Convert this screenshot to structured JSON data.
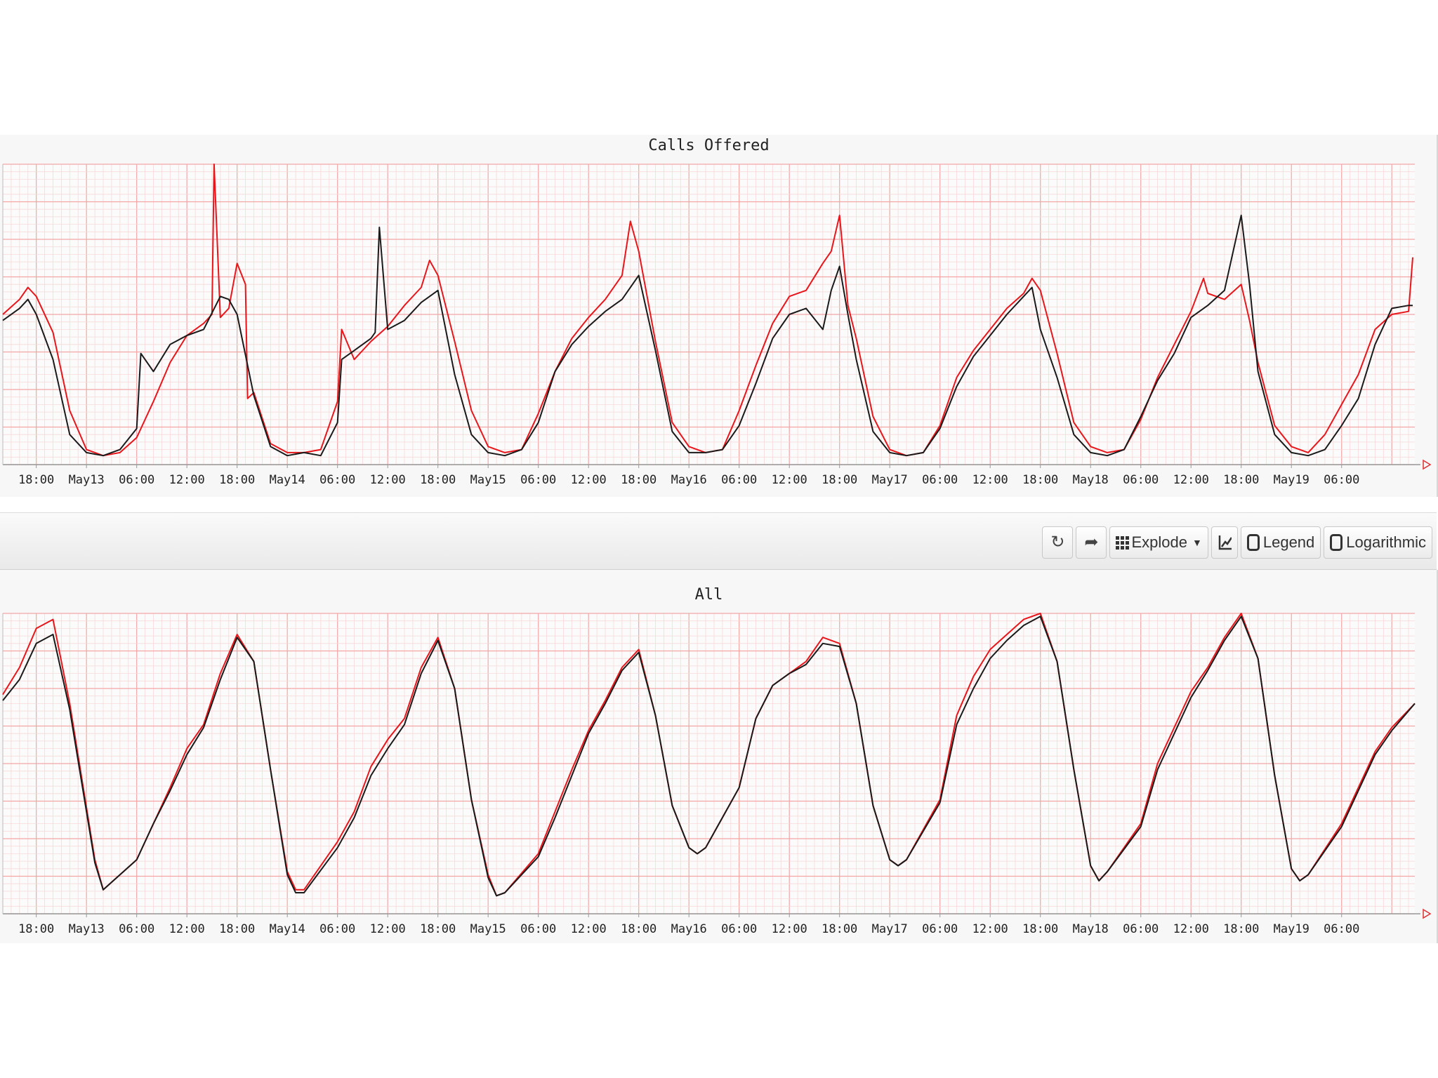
{
  "toolbar": {
    "refresh_icon": "refresh-icon",
    "share_icon": "share-arrow-icon",
    "explode_label": "Explode",
    "explode_icon": "grid-icon",
    "chart_icon": "line-chart-icon",
    "legend_label": "Legend",
    "legend_checked": false,
    "log_label": "Logarithmic",
    "log_checked": false
  },
  "colors": {
    "series_a": "#e8161b",
    "series_b": "#1a1a1a",
    "grid_major": "#f4a6a6",
    "grid_minor": "#f7d9d9",
    "panel_bg": "#f7f7f7"
  },
  "chart_data": [
    {
      "type": "line",
      "title": "Calls Offered",
      "x_tick_labels": [
        "18:00",
        "May13",
        "06:00",
        "12:00",
        "18:00",
        "May14",
        "06:00",
        "12:00",
        "18:00",
        "May15",
        "06:00",
        "12:00",
        "18:00",
        "May16",
        "06:00",
        "12:00",
        "18:00",
        "May17",
        "06:00",
        "12:00",
        "18:00",
        "May18",
        "06:00",
        "12:00",
        "18:00",
        "May19",
        "06:00"
      ],
      "x_range": [
        "2019-05-12 14:00",
        "2019-05-19 14:45"
      ],
      "y_range": [
        0,
        100
      ],
      "y_labels_visible": false,
      "grid": true,
      "legend": "hidden",
      "series": [
        {
          "color": "#e8161b",
          "x": [
            "05-12 14:00",
            "05-12 16:00",
            "05-12 17:00",
            "05-12 18:00",
            "05-12 20:00",
            "05-12 22:00",
            "05-13 00:00",
            "05-13 02:00",
            "05-13 04:00",
            "05-13 06:00",
            "05-13 08:00",
            "05-13 10:00",
            "05-13 12:00",
            "05-13 14:00",
            "05-13 15:00",
            "05-13 15:15",
            "05-13 16:00",
            "05-13 17:00",
            "05-13 18:00",
            "05-13 19:00",
            "05-13 19:15",
            "05-13 20:00",
            "05-13 22:00",
            "05-14 00:00",
            "05-14 02:00",
            "05-14 04:00",
            "05-14 06:00",
            "05-14 06:30",
            "05-14 08:00",
            "05-14 10:00",
            "05-14 12:00",
            "05-14 14:00",
            "05-14 16:00",
            "05-14 17:00",
            "05-14 18:00",
            "05-14 20:00",
            "05-14 22:00",
            "05-15 00:00",
            "05-15 02:00",
            "05-15 04:00",
            "05-15 06:00",
            "05-15 08:00",
            "05-15 10:00",
            "05-15 12:00",
            "05-15 14:00",
            "05-15 16:00",
            "05-15 17:00",
            "05-15 18:00",
            "05-15 20:00",
            "05-15 22:00",
            "05-16 00:00",
            "05-16 02:00",
            "05-16 04:00",
            "05-16 06:00",
            "05-16 08:00",
            "05-16 10:00",
            "05-16 12:00",
            "05-16 14:00",
            "05-16 16:00",
            "05-16 17:00",
            "05-16 18:00",
            "05-16 19:00",
            "05-16 20:00",
            "05-16 22:00",
            "05-17 00:00",
            "05-17 02:00",
            "05-17 04:00",
            "05-17 06:00",
            "05-17 08:00",
            "05-17 10:00",
            "05-17 12:00",
            "05-17 14:00",
            "05-17 16:00",
            "05-17 17:00",
            "05-17 18:00",
            "05-17 20:00",
            "05-17 22:00",
            "05-18 00:00",
            "05-18 02:00",
            "05-18 04:00",
            "05-18 06:00",
            "05-18 08:00",
            "05-18 10:00",
            "05-18 12:00",
            "05-18 13:30",
            "05-18 14:00",
            "05-18 16:00",
            "05-18 18:00",
            "05-18 19:00",
            "05-18 20:00",
            "05-18 22:00",
            "05-19 00:00",
            "05-19 02:00",
            "05-19 04:00",
            "05-19 06:00",
            "05-19 08:00",
            "05-19 10:00",
            "05-19 12:00",
            "05-19 14:00",
            "05-19 14:30"
          ],
          "y": [
            50,
            55,
            59,
            56,
            44,
            18,
            5,
            3,
            4,
            9,
            21,
            34,
            43,
            47,
            50,
            100,
            49,
            52,
            67,
            60,
            22,
            24,
            7,
            4,
            4,
            5,
            21,
            45,
            35,
            41,
            46,
            53,
            59,
            68,
            63,
            41,
            18,
            6,
            4,
            5,
            17,
            31,
            42,
            49,
            55,
            63,
            81,
            71,
            41,
            14,
            6,
            4,
            5,
            18,
            33,
            47,
            56,
            58,
            67,
            71,
            83,
            53,
            42,
            16,
            5,
            3,
            4,
            13,
            29,
            38,
            45,
            52,
            57,
            62,
            58,
            37,
            14,
            6,
            4,
            5,
            15,
            29,
            40,
            51,
            62,
            57,
            55,
            60,
            48,
            34,
            13,
            6,
            4,
            10,
            20,
            30,
            45,
            50,
            51,
            69
          ]
        },
        {
          "color": "#1a1a1a",
          "x": [
            "05-12 14:00",
            "05-12 16:00",
            "05-12 17:00",
            "05-12 18:00",
            "05-12 20:00",
            "05-12 22:00",
            "05-13 00:00",
            "05-13 02:00",
            "05-13 04:00",
            "05-13 06:00",
            "05-13 06:30",
            "05-13 08:00",
            "05-13 10:00",
            "05-13 12:00",
            "05-13 14:00",
            "05-13 16:00",
            "05-13 17:00",
            "05-13 18:00",
            "05-13 20:00",
            "05-13 22:00",
            "05-14 00:00",
            "05-14 02:00",
            "05-14 04:00",
            "05-14 06:00",
            "05-14 06:30",
            "05-14 08:00",
            "05-14 10:00",
            "05-14 10:30",
            "05-14 11:00",
            "05-14 12:00",
            "05-14 14:00",
            "05-14 16:00",
            "05-14 18:00",
            "05-14 20:00",
            "05-14 22:00",
            "05-15 00:00",
            "05-15 02:00",
            "05-15 04:00",
            "05-15 06:00",
            "05-15 08:00",
            "05-15 10:00",
            "05-15 12:00",
            "05-15 14:00",
            "05-15 16:00",
            "05-15 18:00",
            "05-15 20:00",
            "05-15 22:00",
            "05-16 00:00",
            "05-16 02:00",
            "05-16 04:00",
            "05-16 06:00",
            "05-16 08:00",
            "05-16 10:00",
            "05-16 12:00",
            "05-16 14:00",
            "05-16 16:00",
            "05-16 17:00",
            "05-16 18:00",
            "05-16 19:00",
            "05-16 20:00",
            "05-16 22:00",
            "05-17 00:00",
            "05-17 02:00",
            "05-17 04:00",
            "05-17 06:00",
            "05-17 08:00",
            "05-17 10:00",
            "05-17 12:00",
            "05-17 14:00",
            "05-17 16:00",
            "05-17 17:00",
            "05-17 18:00",
            "05-17 20:00",
            "05-17 22:00",
            "05-18 00:00",
            "05-18 02:00",
            "05-18 04:00",
            "05-18 06:00",
            "05-18 08:00",
            "05-18 10:00",
            "05-18 12:00",
            "05-18 14:00",
            "05-18 16:00",
            "05-18 18:00",
            "05-18 19:00",
            "05-18 20:00",
            "05-18 22:00",
            "05-19 00:00",
            "05-19 02:00",
            "05-19 04:00",
            "05-19 06:00",
            "05-19 08:00",
            "05-19 10:00",
            "05-19 12:00",
            "05-19 14:00",
            "05-19 14:30"
          ],
          "y": [
            48,
            52,
            55,
            50,
            35,
            10,
            4,
            3,
            5,
            12,
            37,
            31,
            40,
            43,
            45,
            56,
            55,
            50,
            23,
            6,
            3,
            4,
            3,
            14,
            35,
            38,
            42,
            44,
            79,
            45,
            48,
            54,
            58,
            30,
            10,
            4,
            3,
            5,
            14,
            31,
            40,
            46,
            51,
            55,
            63,
            38,
            11,
            4,
            4,
            5,
            13,
            27,
            42,
            50,
            52,
            45,
            58,
            66,
            50,
            35,
            11,
            4,
            3,
            4,
            12,
            26,
            36,
            43,
            50,
            56,
            59,
            45,
            29,
            10,
            4,
            3,
            5,
            16,
            28,
            37,
            49,
            53,
            58,
            83,
            60,
            31,
            10,
            4,
            3,
            5,
            13,
            22,
            40,
            52,
            53,
            53
          ]
        }
      ]
    },
    {
      "type": "line",
      "title": "All",
      "x_tick_labels": [
        "18:00",
        "May13",
        "06:00",
        "12:00",
        "18:00",
        "May14",
        "06:00",
        "12:00",
        "18:00",
        "May15",
        "06:00",
        "12:00",
        "18:00",
        "May16",
        "06:00",
        "12:00",
        "18:00",
        "May17",
        "06:00",
        "12:00",
        "18:00",
        "May18",
        "06:00",
        "12:00",
        "18:00",
        "May19",
        "06:00"
      ],
      "x_range": [
        "2019-05-12 14:00",
        "2019-05-19 14:45"
      ],
      "y_range": [
        0,
        100
      ],
      "y_labels_visible": false,
      "grid": true,
      "legend": "hidden",
      "series": [
        {
          "color": "#e8161b",
          "x": [
            "05-12 14:00",
            "05-12 16:00",
            "05-12 18:00",
            "05-12 20:00",
            "05-12 22:00",
            "05-13 01:00",
            "05-13 02:00",
            "05-13 06:00",
            "05-13 08:00",
            "05-13 10:00",
            "05-13 12:00",
            "05-13 14:00",
            "05-13 16:00",
            "05-13 18:00",
            "05-13 20:00",
            "05-13 22:00",
            "05-14 00:00",
            "05-14 01:00",
            "05-14 02:00",
            "05-14 06:00",
            "05-14 08:00",
            "05-14 10:00",
            "05-14 12:00",
            "05-14 14:00",
            "05-14 16:00",
            "05-14 18:00",
            "05-14 20:00",
            "05-14 22:00",
            "05-15 00:00",
            "05-15 01:00",
            "05-15 02:00",
            "05-15 06:00",
            "05-15 08:00",
            "05-15 10:00",
            "05-15 12:00",
            "05-15 14:00",
            "05-15 16:00",
            "05-15 18:00",
            "05-15 20:00",
            "05-15 22:00",
            "05-16 00:00",
            "05-16 01:00",
            "05-16 02:00",
            "05-16 06:00",
            "05-16 08:00",
            "05-16 10:00",
            "05-16 12:00",
            "05-16 14:00",
            "05-16 16:00",
            "05-16 18:00",
            "05-16 20:00",
            "05-16 22:00",
            "05-17 00:00",
            "05-17 01:00",
            "05-17 02:00",
            "05-17 06:00",
            "05-17 08:00",
            "05-17 10:00",
            "05-17 12:00",
            "05-17 14:00",
            "05-17 16:00",
            "05-17 18:00",
            "05-17 20:00",
            "05-17 22:00",
            "05-18 00:00",
            "05-18 01:00",
            "05-18 02:00",
            "05-18 06:00",
            "05-18 08:00",
            "05-18 10:00",
            "05-18 12:00",
            "05-18 14:00",
            "05-18 16:00",
            "05-18 18:00",
            "05-18 20:00",
            "05-18 22:00",
            "05-19 00:00",
            "05-19 01:00",
            "05-19 02:00",
            "05-19 06:00",
            "05-19 08:00",
            "05-19 10:00",
            "05-19 12:00",
            "05-19 14:45"
          ],
          "y": [
            73,
            82,
            95,
            98,
            70,
            18,
            8,
            18,
            30,
            42,
            55,
            63,
            80,
            93,
            84,
            48,
            14,
            8,
            8,
            24,
            34,
            49,
            58,
            65,
            82,
            92,
            75,
            38,
            13,
            6,
            7,
            20,
            34,
            48,
            61,
            71,
            82,
            88,
            66,
            36,
            22,
            20,
            22,
            42,
            65,
            76,
            80,
            84,
            92,
            90,
            70,
            36,
            18,
            16,
            18,
            38,
            66,
            79,
            88,
            93,
            98,
            100,
            84,
            48,
            16,
            11,
            14,
            30,
            50,
            62,
            74,
            82,
            92,
            100,
            85,
            46,
            15,
            11,
            13,
            30,
            42,
            54,
            62,
            70
          ]
        },
        {
          "color": "#1a1a1a",
          "x": [
            "05-12 14:00",
            "05-12 16:00",
            "05-12 18:00",
            "05-12 20:00",
            "05-12 22:00",
            "05-13 01:00",
            "05-13 02:00",
            "05-13 06:00",
            "05-13 08:00",
            "05-13 10:00",
            "05-13 12:00",
            "05-13 14:00",
            "05-13 16:00",
            "05-13 18:00",
            "05-13 20:00",
            "05-13 22:00",
            "05-14 00:00",
            "05-14 01:00",
            "05-14 02:00",
            "05-14 06:00",
            "05-14 08:00",
            "05-14 10:00",
            "05-14 12:00",
            "05-14 14:00",
            "05-14 16:00",
            "05-14 18:00",
            "05-14 20:00",
            "05-14 22:00",
            "05-15 00:00",
            "05-15 01:00",
            "05-15 02:00",
            "05-15 06:00",
            "05-15 08:00",
            "05-15 10:00",
            "05-15 12:00",
            "05-15 14:00",
            "05-15 16:00",
            "05-15 18:00",
            "05-15 20:00",
            "05-15 22:00",
            "05-16 00:00",
            "05-16 01:00",
            "05-16 02:00",
            "05-16 06:00",
            "05-16 08:00",
            "05-16 10:00",
            "05-16 12:00",
            "05-16 14:00",
            "05-16 16:00",
            "05-16 18:00",
            "05-16 20:00",
            "05-16 22:00",
            "05-17 00:00",
            "05-17 01:00",
            "05-17 02:00",
            "05-17 06:00",
            "05-17 08:00",
            "05-17 10:00",
            "05-17 12:00",
            "05-17 14:00",
            "05-17 16:00",
            "05-17 18:00",
            "05-17 20:00",
            "05-17 22:00",
            "05-18 00:00",
            "05-18 01:00",
            "05-18 02:00",
            "05-18 06:00",
            "05-18 08:00",
            "05-18 10:00",
            "05-18 12:00",
            "05-18 14:00",
            "05-18 16:00",
            "05-18 18:00",
            "05-18 20:00",
            "05-18 22:00",
            "05-19 00:00",
            "05-19 01:00",
            "05-19 02:00",
            "05-19 06:00",
            "05-19 08:00",
            "05-19 10:00",
            "05-19 12:00",
            "05-19 14:45"
          ],
          "y": [
            71,
            78,
            90,
            93,
            68,
            17,
            8,
            18,
            30,
            41,
            53,
            62,
            78,
            92,
            84,
            48,
            13,
            7,
            7,
            22,
            32,
            46,
            55,
            63,
            80,
            91,
            75,
            38,
            12,
            6,
            7,
            19,
            32,
            46,
            60,
            70,
            81,
            87,
            66,
            36,
            22,
            20,
            22,
            42,
            65,
            76,
            80,
            83,
            90,
            89,
            70,
            36,
            18,
            16,
            18,
            37,
            63,
            75,
            85,
            91,
            96,
            99,
            84,
            48,
            16,
            11,
            14,
            29,
            48,
            60,
            72,
            81,
            91,
            99,
            85,
            46,
            15,
            11,
            13,
            29,
            41,
            53,
            61,
            70
          ]
        }
      ]
    }
  ]
}
